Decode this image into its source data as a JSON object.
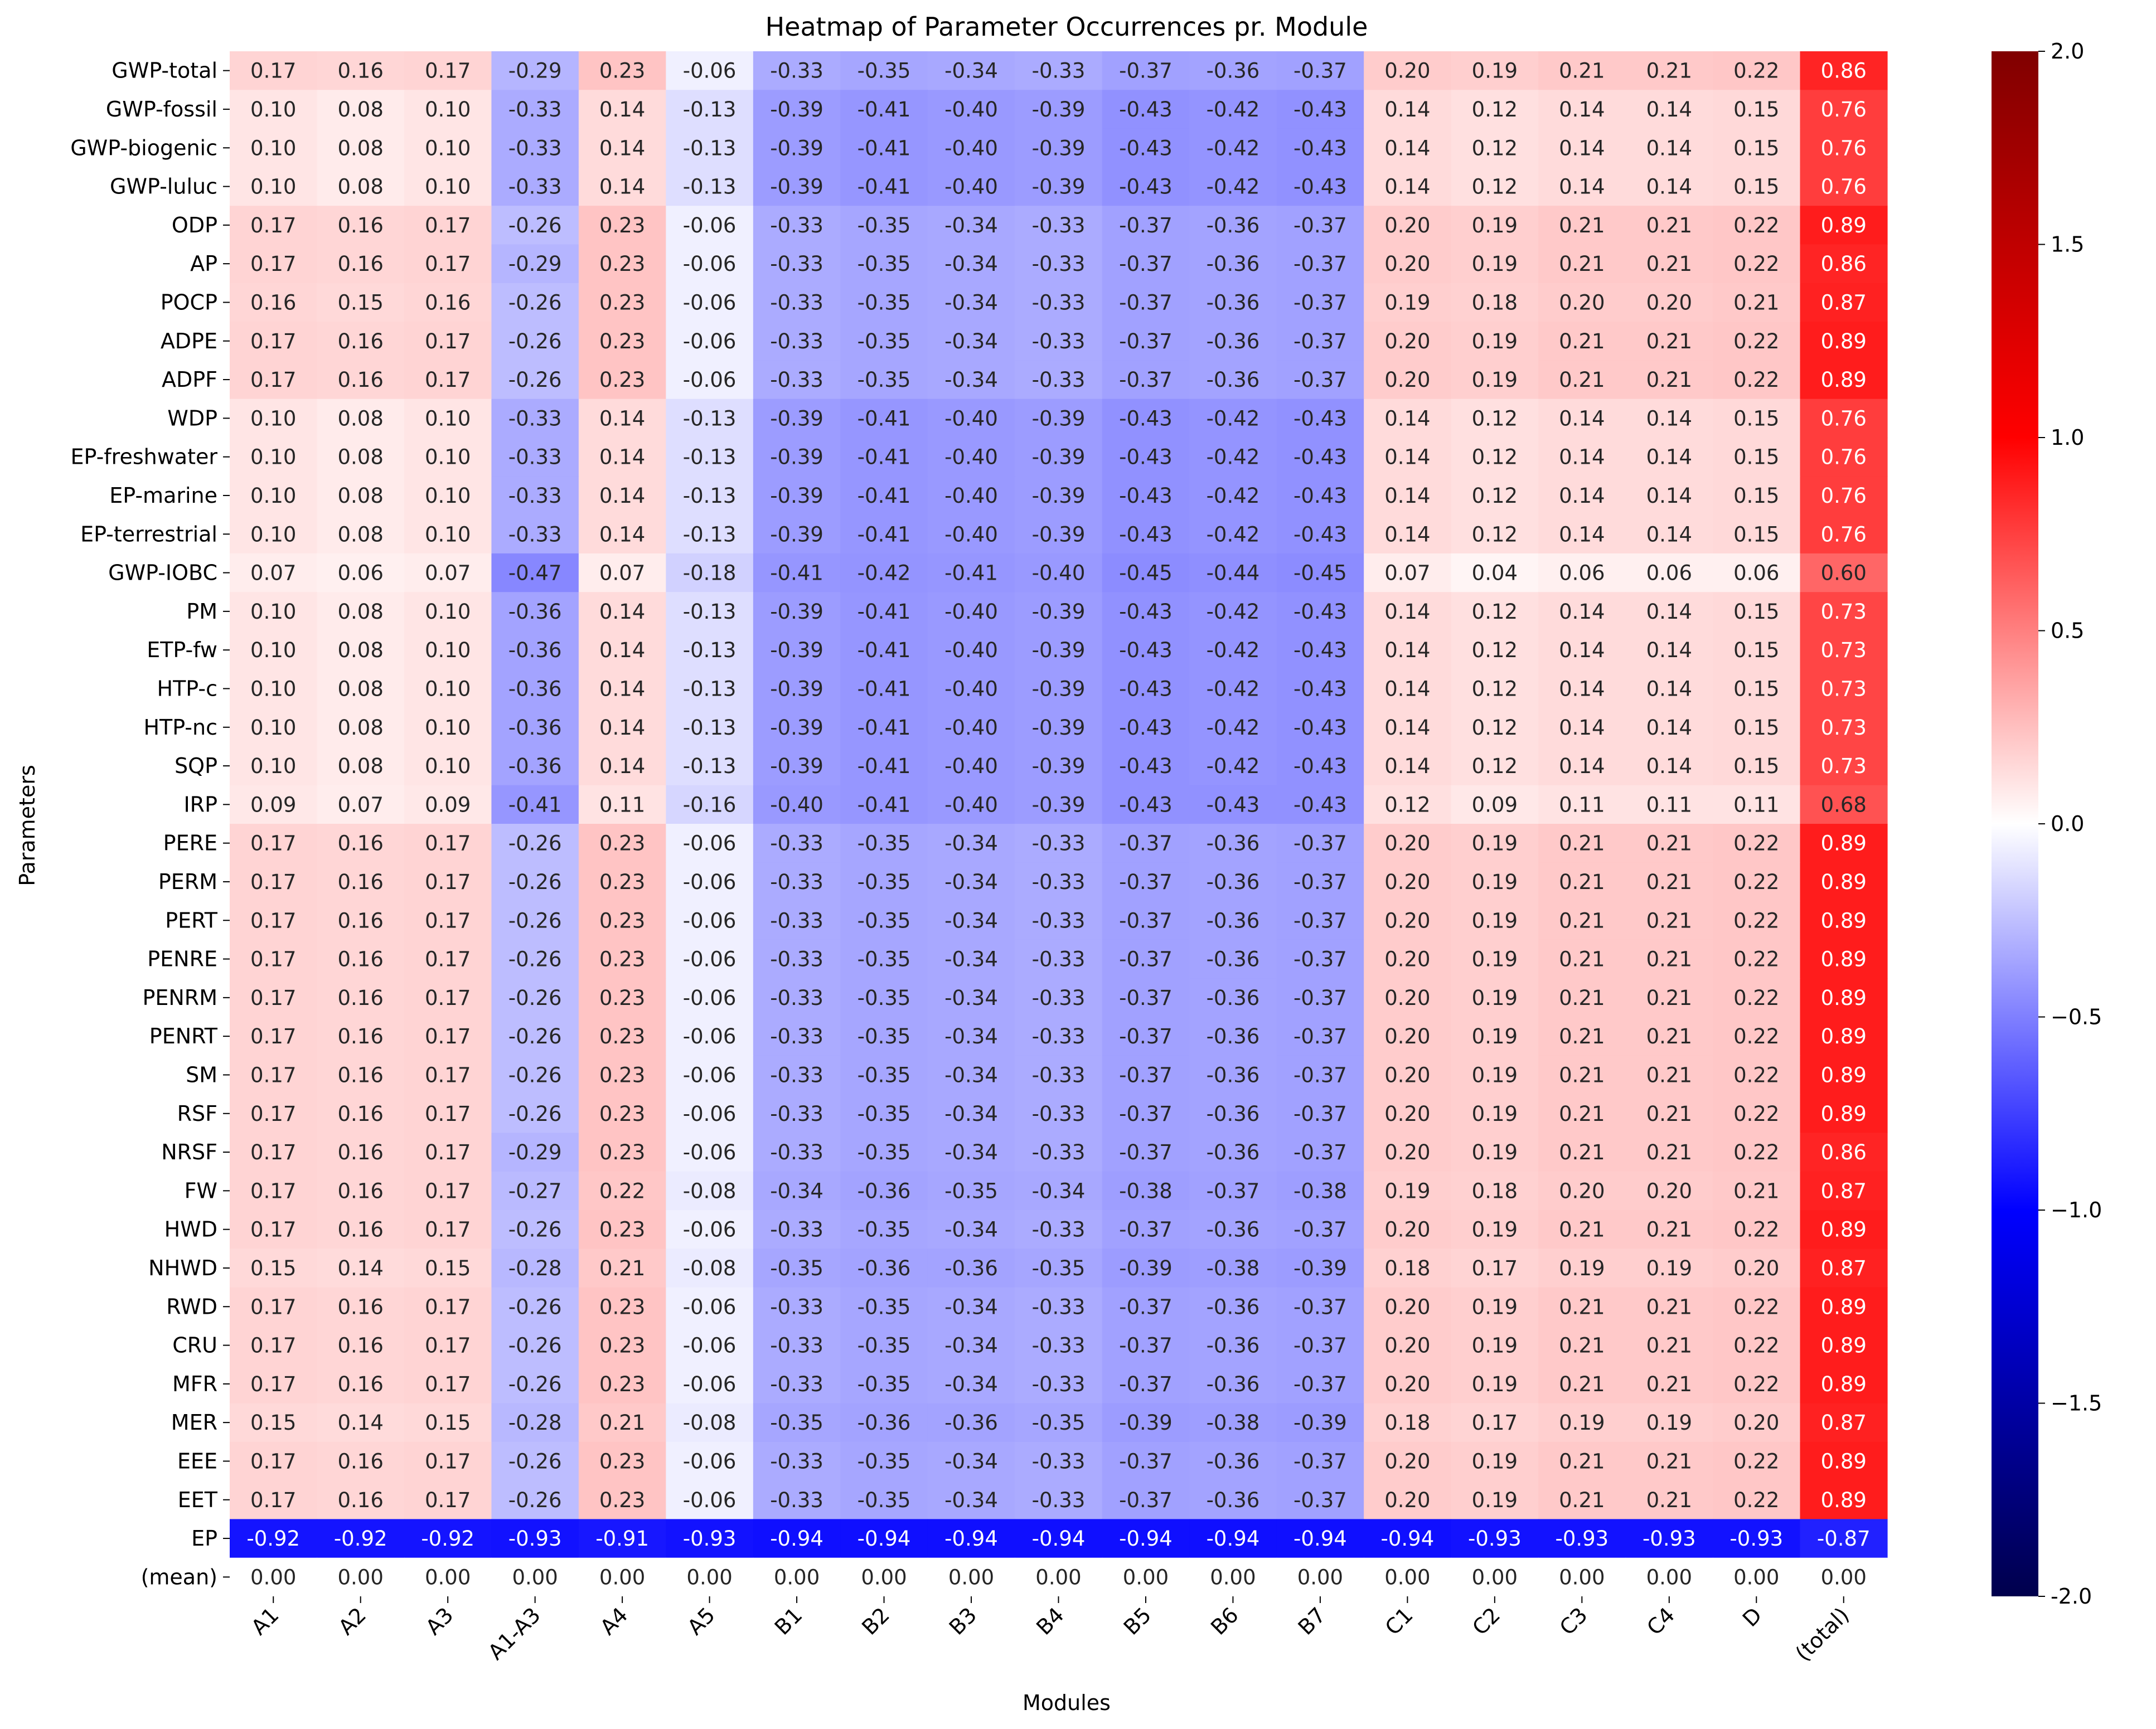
{
  "chart_data": {
    "type": "heatmap",
    "title": "Heatmap of Parameter Occurrences pr. Module",
    "xlabel": "Modules",
    "ylabel": "Parameters",
    "columns": [
      "A1",
      "A2",
      "A3",
      "A1-A3",
      "A4",
      "A5",
      "B1",
      "B2",
      "B3",
      "B4",
      "B5",
      "B6",
      "B7",
      "C1",
      "C2",
      "C3",
      "C4",
      "D",
      "(total)"
    ],
    "rows": [
      "GWP-total",
      "GWP-fossil",
      "GWP-biogenic",
      "GWP-luluc",
      "ODP",
      "AP",
      "POCP",
      "ADPE",
      "ADPF",
      "WDP",
      "EP-freshwater",
      "EP-marine",
      "EP-terrestrial",
      "GWP-IOBC",
      "PM",
      "ETP-fw",
      "HTP-c",
      "HTP-nc",
      "SQP",
      "IRP",
      "PERE",
      "PERM",
      "PERT",
      "PENRE",
      "PENRM",
      "PENRT",
      "SM",
      "RSF",
      "NRSF",
      "FW",
      "HWD",
      "NHWD",
      "RWD",
      "CRU",
      "MFR",
      "MER",
      "EEE",
      "EET",
      "EP",
      "(mean)"
    ],
    "value_labels": [
      [
        "0.17",
        "0.16",
        "0.17",
        "-0.29",
        "0.23",
        "-0.06",
        "-0.33",
        "-0.35",
        "-0.34",
        "-0.33",
        "-0.37",
        "-0.36",
        "-0.37",
        "0.20",
        "0.19",
        "0.21",
        "0.21",
        "0.22",
        "0.86"
      ],
      [
        "0.10",
        "0.08",
        "0.10",
        "-0.33",
        "0.14",
        "-0.13",
        "-0.39",
        "-0.41",
        "-0.40",
        "-0.39",
        "-0.43",
        "-0.42",
        "-0.43",
        "0.14",
        "0.12",
        "0.14",
        "0.14",
        "0.15",
        "0.76"
      ],
      [
        "0.10",
        "0.08",
        "0.10",
        "-0.33",
        "0.14",
        "-0.13",
        "-0.39",
        "-0.41",
        "-0.40",
        "-0.39",
        "-0.43",
        "-0.42",
        "-0.43",
        "0.14",
        "0.12",
        "0.14",
        "0.14",
        "0.15",
        "0.76"
      ],
      [
        "0.10",
        "0.08",
        "0.10",
        "-0.33",
        "0.14",
        "-0.13",
        "-0.39",
        "-0.41",
        "-0.40",
        "-0.39",
        "-0.43",
        "-0.42",
        "-0.43",
        "0.14",
        "0.12",
        "0.14",
        "0.14",
        "0.15",
        "0.76"
      ],
      [
        "0.17",
        "0.16",
        "0.17",
        "-0.26",
        "0.23",
        "-0.06",
        "-0.33",
        "-0.35",
        "-0.34",
        "-0.33",
        "-0.37",
        "-0.36",
        "-0.37",
        "0.20",
        "0.19",
        "0.21",
        "0.21",
        "0.22",
        "0.89"
      ],
      [
        "0.17",
        "0.16",
        "0.17",
        "-0.29",
        "0.23",
        "-0.06",
        "-0.33",
        "-0.35",
        "-0.34",
        "-0.33",
        "-0.37",
        "-0.36",
        "-0.37",
        "0.20",
        "0.19",
        "0.21",
        "0.21",
        "0.22",
        "0.86"
      ],
      [
        "0.16",
        "0.15",
        "0.16",
        "-0.26",
        "0.23",
        "-0.06",
        "-0.33",
        "-0.35",
        "-0.34",
        "-0.33",
        "-0.37",
        "-0.36",
        "-0.37",
        "0.19",
        "0.18",
        "0.20",
        "0.20",
        "0.21",
        "0.87"
      ],
      [
        "0.17",
        "0.16",
        "0.17",
        "-0.26",
        "0.23",
        "-0.06",
        "-0.33",
        "-0.35",
        "-0.34",
        "-0.33",
        "-0.37",
        "-0.36",
        "-0.37",
        "0.20",
        "0.19",
        "0.21",
        "0.21",
        "0.22",
        "0.89"
      ],
      [
        "0.17",
        "0.16",
        "0.17",
        "-0.26",
        "0.23",
        "-0.06",
        "-0.33",
        "-0.35",
        "-0.34",
        "-0.33",
        "-0.37",
        "-0.36",
        "-0.37",
        "0.20",
        "0.19",
        "0.21",
        "0.21",
        "0.22",
        "0.89"
      ],
      [
        "0.10",
        "0.08",
        "0.10",
        "-0.33",
        "0.14",
        "-0.13",
        "-0.39",
        "-0.41",
        "-0.40",
        "-0.39",
        "-0.43",
        "-0.42",
        "-0.43",
        "0.14",
        "0.12",
        "0.14",
        "0.14",
        "0.15",
        "0.76"
      ],
      [
        "0.10",
        "0.08",
        "0.10",
        "-0.33",
        "0.14",
        "-0.13",
        "-0.39",
        "-0.41",
        "-0.40",
        "-0.39",
        "-0.43",
        "-0.42",
        "-0.43",
        "0.14",
        "0.12",
        "0.14",
        "0.14",
        "0.15",
        "0.76"
      ],
      [
        "0.10",
        "0.08",
        "0.10",
        "-0.33",
        "0.14",
        "-0.13",
        "-0.39",
        "-0.41",
        "-0.40",
        "-0.39",
        "-0.43",
        "-0.42",
        "-0.43",
        "0.14",
        "0.12",
        "0.14",
        "0.14",
        "0.15",
        "0.76"
      ],
      [
        "0.10",
        "0.08",
        "0.10",
        "-0.33",
        "0.14",
        "-0.13",
        "-0.39",
        "-0.41",
        "-0.40",
        "-0.39",
        "-0.43",
        "-0.42",
        "-0.43",
        "0.14",
        "0.12",
        "0.14",
        "0.14",
        "0.15",
        "0.76"
      ],
      [
        "0.07",
        "0.06",
        "0.07",
        "-0.47",
        "0.07",
        "-0.18",
        "-0.41",
        "-0.42",
        "-0.41",
        "-0.40",
        "-0.45",
        "-0.44",
        "-0.45",
        "0.07",
        "0.04",
        "0.06",
        "0.06",
        "0.06",
        "0.60"
      ],
      [
        "0.10",
        "0.08",
        "0.10",
        "-0.36",
        "0.14",
        "-0.13",
        "-0.39",
        "-0.41",
        "-0.40",
        "-0.39",
        "-0.43",
        "-0.42",
        "-0.43",
        "0.14",
        "0.12",
        "0.14",
        "0.14",
        "0.15",
        "0.73"
      ],
      [
        "0.10",
        "0.08",
        "0.10",
        "-0.36",
        "0.14",
        "-0.13",
        "-0.39",
        "-0.41",
        "-0.40",
        "-0.39",
        "-0.43",
        "-0.42",
        "-0.43",
        "0.14",
        "0.12",
        "0.14",
        "0.14",
        "0.15",
        "0.73"
      ],
      [
        "0.10",
        "0.08",
        "0.10",
        "-0.36",
        "0.14",
        "-0.13",
        "-0.39",
        "-0.41",
        "-0.40",
        "-0.39",
        "-0.43",
        "-0.42",
        "-0.43",
        "0.14",
        "0.12",
        "0.14",
        "0.14",
        "0.15",
        "0.73"
      ],
      [
        "0.10",
        "0.08",
        "0.10",
        "-0.36",
        "0.14",
        "-0.13",
        "-0.39",
        "-0.41",
        "-0.40",
        "-0.39",
        "-0.43",
        "-0.42",
        "-0.43",
        "0.14",
        "0.12",
        "0.14",
        "0.14",
        "0.15",
        "0.73"
      ],
      [
        "0.10",
        "0.08",
        "0.10",
        "-0.36",
        "0.14",
        "-0.13",
        "-0.39",
        "-0.41",
        "-0.40",
        "-0.39",
        "-0.43",
        "-0.42",
        "-0.43",
        "0.14",
        "0.12",
        "0.14",
        "0.14",
        "0.15",
        "0.73"
      ],
      [
        "0.09",
        "0.07",
        "0.09",
        "-0.41",
        "0.11",
        "-0.16",
        "-0.40",
        "-0.41",
        "-0.40",
        "-0.39",
        "-0.43",
        "-0.43",
        "-0.43",
        "0.12",
        "0.09",
        "0.11",
        "0.11",
        "0.11",
        "0.68"
      ],
      [
        "0.17",
        "0.16",
        "0.17",
        "-0.26",
        "0.23",
        "-0.06",
        "-0.33",
        "-0.35",
        "-0.34",
        "-0.33",
        "-0.37",
        "-0.36",
        "-0.37",
        "0.20",
        "0.19",
        "0.21",
        "0.21",
        "0.22",
        "0.89"
      ],
      [
        "0.17",
        "0.16",
        "0.17",
        "-0.26",
        "0.23",
        "-0.06",
        "-0.33",
        "-0.35",
        "-0.34",
        "-0.33",
        "-0.37",
        "-0.36",
        "-0.37",
        "0.20",
        "0.19",
        "0.21",
        "0.21",
        "0.22",
        "0.89"
      ],
      [
        "0.17",
        "0.16",
        "0.17",
        "-0.26",
        "0.23",
        "-0.06",
        "-0.33",
        "-0.35",
        "-0.34",
        "-0.33",
        "-0.37",
        "-0.36",
        "-0.37",
        "0.20",
        "0.19",
        "0.21",
        "0.21",
        "0.22",
        "0.89"
      ],
      [
        "0.17",
        "0.16",
        "0.17",
        "-0.26",
        "0.23",
        "-0.06",
        "-0.33",
        "-0.35",
        "-0.34",
        "-0.33",
        "-0.37",
        "-0.36",
        "-0.37",
        "0.20",
        "0.19",
        "0.21",
        "0.21",
        "0.22",
        "0.89"
      ],
      [
        "0.17",
        "0.16",
        "0.17",
        "-0.26",
        "0.23",
        "-0.06",
        "-0.33",
        "-0.35",
        "-0.34",
        "-0.33",
        "-0.37",
        "-0.36",
        "-0.37",
        "0.20",
        "0.19",
        "0.21",
        "0.21",
        "0.22",
        "0.89"
      ],
      [
        "0.17",
        "0.16",
        "0.17",
        "-0.26",
        "0.23",
        "-0.06",
        "-0.33",
        "-0.35",
        "-0.34",
        "-0.33",
        "-0.37",
        "-0.36",
        "-0.37",
        "0.20",
        "0.19",
        "0.21",
        "0.21",
        "0.22",
        "0.89"
      ],
      [
        "0.17",
        "0.16",
        "0.17",
        "-0.26",
        "0.23",
        "-0.06",
        "-0.33",
        "-0.35",
        "-0.34",
        "-0.33",
        "-0.37",
        "-0.36",
        "-0.37",
        "0.20",
        "0.19",
        "0.21",
        "0.21",
        "0.22",
        "0.89"
      ],
      [
        "0.17",
        "0.16",
        "0.17",
        "-0.26",
        "0.23",
        "-0.06",
        "-0.33",
        "-0.35",
        "-0.34",
        "-0.33",
        "-0.37",
        "-0.36",
        "-0.37",
        "0.20",
        "0.19",
        "0.21",
        "0.21",
        "0.22",
        "0.89"
      ],
      [
        "0.17",
        "0.16",
        "0.17",
        "-0.29",
        "0.23",
        "-0.06",
        "-0.33",
        "-0.35",
        "-0.34",
        "-0.33",
        "-0.37",
        "-0.36",
        "-0.37",
        "0.20",
        "0.19",
        "0.21",
        "0.21",
        "0.22",
        "0.86"
      ],
      [
        "0.17",
        "0.16",
        "0.17",
        "-0.27",
        "0.22",
        "-0.08",
        "-0.34",
        "-0.36",
        "-0.35",
        "-0.34",
        "-0.38",
        "-0.37",
        "-0.38",
        "0.19",
        "0.18",
        "0.20",
        "0.20",
        "0.21",
        "0.87"
      ],
      [
        "0.17",
        "0.16",
        "0.17",
        "-0.26",
        "0.23",
        "-0.06",
        "-0.33",
        "-0.35",
        "-0.34",
        "-0.33",
        "-0.37",
        "-0.36",
        "-0.37",
        "0.20",
        "0.19",
        "0.21",
        "0.21",
        "0.22",
        "0.89"
      ],
      [
        "0.15",
        "0.14",
        "0.15",
        "-0.28",
        "0.21",
        "-0.08",
        "-0.35",
        "-0.36",
        "-0.36",
        "-0.35",
        "-0.39",
        "-0.38",
        "-0.39",
        "0.18",
        "0.17",
        "0.19",
        "0.19",
        "0.20",
        "0.87"
      ],
      [
        "0.17",
        "0.16",
        "0.17",
        "-0.26",
        "0.23",
        "-0.06",
        "-0.33",
        "-0.35",
        "-0.34",
        "-0.33",
        "-0.37",
        "-0.36",
        "-0.37",
        "0.20",
        "0.19",
        "0.21",
        "0.21",
        "0.22",
        "0.89"
      ],
      [
        "0.17",
        "0.16",
        "0.17",
        "-0.26",
        "0.23",
        "-0.06",
        "-0.33",
        "-0.35",
        "-0.34",
        "-0.33",
        "-0.37",
        "-0.36",
        "-0.37",
        "0.20",
        "0.19",
        "0.21",
        "0.21",
        "0.22",
        "0.89"
      ],
      [
        "0.17",
        "0.16",
        "0.17",
        "-0.26",
        "0.23",
        "-0.06",
        "-0.33",
        "-0.35",
        "-0.34",
        "-0.33",
        "-0.37",
        "-0.36",
        "-0.37",
        "0.20",
        "0.19",
        "0.21",
        "0.21",
        "0.22",
        "0.89"
      ],
      [
        "0.15",
        "0.14",
        "0.15",
        "-0.28",
        "0.21",
        "-0.08",
        "-0.35",
        "-0.36",
        "-0.36",
        "-0.35",
        "-0.39",
        "-0.38",
        "-0.39",
        "0.18",
        "0.17",
        "0.19",
        "0.19",
        "0.20",
        "0.87"
      ],
      [
        "0.17",
        "0.16",
        "0.17",
        "-0.26",
        "0.23",
        "-0.06",
        "-0.33",
        "-0.35",
        "-0.34",
        "-0.33",
        "-0.37",
        "-0.36",
        "-0.37",
        "0.20",
        "0.19",
        "0.21",
        "0.21",
        "0.22",
        "0.89"
      ],
      [
        "0.17",
        "0.16",
        "0.17",
        "-0.26",
        "0.23",
        "-0.06",
        "-0.33",
        "-0.35",
        "-0.34",
        "-0.33",
        "-0.37",
        "-0.36",
        "-0.37",
        "0.20",
        "0.19",
        "0.21",
        "0.21",
        "0.22",
        "0.89"
      ],
      [
        "-0.92",
        "-0.92",
        "-0.92",
        "-0.93",
        "-0.91",
        "-0.93",
        "-0.94",
        "-0.94",
        "-0.94",
        "-0.94",
        "-0.94",
        "-0.94",
        "-0.94",
        "-0.94",
        "-0.93",
        "-0.93",
        "-0.93",
        "-0.93",
        "-0.87"
      ],
      [
        "0.00",
        "0.00",
        "0.00",
        "0.00",
        "0.00",
        "0.00",
        "0.00",
        "0.00",
        "0.00",
        "0.00",
        "0.00",
        "0.00",
        "0.00",
        "0.00",
        "0.00",
        "0.00",
        "0.00",
        "0.00",
        "0.00"
      ]
    ],
    "colorbar": {
      "colormap": "seismic",
      "range": [
        -2.0,
        2.0
      ],
      "ticks": [
        "-2.0",
        "−1.5",
        "−1.0",
        "−0.5",
        "0.0",
        "0.5",
        "1.0",
        "1.5",
        "2.0"
      ],
      "colors": [
        "#00004c",
        "#0000ff",
        "#ffffff",
        "#ff0000",
        "#800000"
      ]
    },
    "grid": false,
    "legend": "colorbar-right"
  }
}
